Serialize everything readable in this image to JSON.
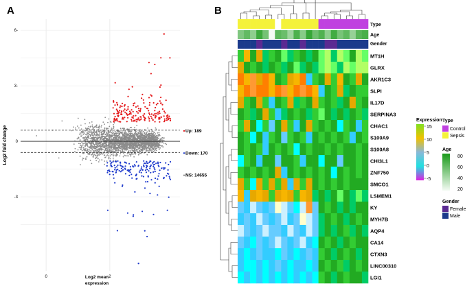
{
  "panel_a": {
    "label": "A",
    "chart_data": {
      "type": "scatter",
      "title": "",
      "xlabel": "Log2 mean expression",
      "ylabel": "Log2 fold change",
      "xlim": [
        -0.8,
        4.2
      ],
      "ylim": [
        -7.0,
        6.6
      ],
      "x_ticks": [
        0,
        2
      ],
      "y_ticks": [
        6,
        3,
        0,
        -3
      ],
      "x_tick_labels": [
        "0",
        "2"
      ],
      "y_tick_labels": [
        "6-",
        "3-",
        "0",
        "-3"
      ],
      "reference_lines": [
        0.6,
        -0.6
      ],
      "zero_line": 0,
      "series": [
        {
          "name": "Up",
          "color": "#e41a1c",
          "count": 189
        },
        {
          "name": "Down",
          "color": "#1f3bcc",
          "count": 170
        },
        {
          "name": "NS",
          "color": "#8c8c8c",
          "count": 14655
        }
      ],
      "legend": [
        "Up: 189",
        "Down: 170",
        "NS: 14655"
      ],
      "legend_position": "right"
    }
  },
  "panel_b": {
    "label": "B",
    "chart_data": {
      "type": "heatmap",
      "genes": [
        "MT1H",
        "GLRX",
        "AKR1C3",
        "SLPI",
        "IL17D",
        "SERPINA3",
        "CHAC1",
        "S100A9",
        "S100A8",
        "CHI3L1",
        "ZNF750",
        "SMCO1",
        "LSMEM1",
        "KY",
        "MYH7B",
        "AQP4",
        "CA14",
        "CTXN3",
        "LINC00310",
        "LGI1"
      ],
      "n_samples": 21,
      "annotation_rows": [
        "Type",
        "Age",
        "Gender"
      ],
      "type_values": [
        "Sepsis",
        "Sepsis",
        "Sepsis",
        "Sepsis",
        "Sepsis",
        "Sepsis",
        "Sepsis",
        "Sepsis",
        "Sepsis",
        "Sepsis",
        "Sepsis",
        "Sepsis",
        "Sepsis",
        "Control",
        "Control",
        "Control",
        "Control",
        "Control",
        "Control",
        "Control",
        "Control"
      ],
      "age_values": [
        52,
        60,
        48,
        70,
        55,
        20,
        62,
        58,
        44,
        66,
        50,
        72,
        57,
        65,
        48,
        69,
        54,
        61,
        46,
        63,
        67
      ],
      "gender_values": [
        "Male",
        "Male",
        "Male",
        "Female",
        "Male",
        "Male",
        "Male",
        "Female",
        "Male",
        "Male",
        "Female",
        "Male",
        "Male",
        "Male",
        "Female",
        "Female",
        "Male",
        "Male",
        "Male",
        "Male",
        "Male"
      ],
      "expression": [
        [
          11,
          9,
          12,
          10,
          13,
          11,
          12,
          14,
          13,
          11,
          12,
          13,
          12,
          14,
          15,
          13,
          15,
          14,
          12,
          15,
          14
        ],
        [
          10,
          12,
          11,
          12,
          13,
          12,
          11,
          13,
          12,
          14,
          13,
          12,
          13,
          14,
          15,
          14,
          13,
          15,
          14,
          15,
          15
        ],
        [
          8,
          9,
          7,
          10,
          8,
          9,
          12,
          11,
          10,
          9,
          8,
          3,
          11,
          12,
          10,
          11,
          9,
          12,
          11,
          10,
          12
        ],
        [
          9,
          8,
          7,
          8,
          8,
          9,
          8,
          7,
          9,
          8,
          7,
          8,
          9,
          3,
          12,
          11,
          10,
          13,
          12,
          11,
          11
        ],
        [
          10,
          11,
          12,
          10,
          11,
          3,
          12,
          11,
          10,
          13,
          11,
          12,
          10,
          11,
          12,
          11,
          13,
          12,
          10,
          11,
          12
        ],
        [
          12,
          11,
          13,
          12,
          10,
          11,
          3,
          13,
          12,
          11,
          12,
          13,
          11,
          14,
          12,
          13,
          12,
          13,
          12,
          11,
          13
        ],
        [
          11,
          10,
          12,
          2,
          11,
          4,
          12,
          10,
          11,
          3,
          12,
          10,
          11,
          12,
          11,
          12,
          2,
          11,
          12,
          3,
          11
        ],
        [
          12,
          11,
          2,
          12,
          3,
          11,
          12,
          4,
          11,
          12,
          11,
          3,
          12,
          11,
          12,
          11,
          12,
          11,
          3,
          12,
          11
        ],
        [
          12,
          11,
          12,
          11,
          3,
          12,
          11,
          12,
          11,
          2,
          12,
          11,
          12,
          12,
          11,
          12,
          11,
          12,
          12,
          11,
          12
        ],
        [
          2,
          11,
          12,
          3,
          12,
          12,
          4,
          12,
          12,
          11,
          3,
          12,
          12,
          2,
          12,
          12,
          4,
          12,
          12,
          11,
          12
        ],
        [
          11,
          12,
          11,
          12,
          11,
          12,
          10,
          3,
          12,
          11,
          12,
          11,
          12,
          11,
          12,
          2,
          12,
          11,
          12,
          11,
          12
        ],
        [
          10,
          11,
          2,
          10,
          11,
          10,
          11,
          10,
          3,
          10,
          11,
          10,
          12,
          11,
          12,
          11,
          12,
          11,
          12,
          12,
          12
        ],
        [
          9,
          3,
          10,
          9,
          10,
          11,
          10,
          9,
          10,
          11,
          9,
          10,
          13,
          12,
          13,
          12,
          14,
          12,
          13,
          14,
          13
        ],
        [
          4,
          3,
          5,
          4,
          3,
          4,
          6,
          5,
          4,
          2,
          5,
          7,
          4,
          12,
          11,
          12,
          13,
          12,
          13,
          12,
          12
        ],
        [
          3,
          4,
          3,
          5,
          4,
          3,
          4,
          5,
          3,
          4,
          6,
          5,
          4,
          13,
          12,
          11,
          12,
          13,
          12,
          11,
          12
        ],
        [
          5,
          4,
          3,
          4,
          5,
          4,
          4,
          3,
          5,
          4,
          3,
          5,
          4,
          13,
          12,
          13,
          12,
          11,
          13,
          12,
          13
        ],
        [
          4,
          3,
          2,
          4,
          3,
          4,
          5,
          4,
          3,
          4,
          5,
          3,
          2,
          12,
          11,
          12,
          13,
          12,
          11,
          12,
          12
        ],
        [
          3,
          2,
          3,
          4,
          3,
          3,
          2,
          4,
          3,
          2,
          3,
          4,
          3,
          11,
          12,
          13,
          12,
          11,
          12,
          13,
          12
        ],
        [
          3,
          2,
          2,
          3,
          2,
          3,
          4,
          3,
          2,
          3,
          3,
          2,
          3,
          12,
          11,
          12,
          11,
          13,
          12,
          11,
          12
        ],
        [
          2,
          3,
          2,
          3,
          2,
          3,
          2,
          3,
          2,
          3,
          2,
          3,
          2,
          11,
          12,
          13,
          12,
          11,
          12,
          12,
          13
        ]
      ],
      "expression_legend": {
        "title": "Expression",
        "ticks": [
          "15",
          "10",
          "5",
          "0",
          "-5"
        ]
      },
      "type_legend": {
        "title": "Type",
        "items": [
          {
            "label": "Control",
            "color": "#c040e0"
          },
          {
            "label": "Sepsis",
            "color": "#f4f23a"
          }
        ]
      },
      "age_legend": {
        "title": "Age",
        "ticks": [
          "80",
          "60",
          "40",
          "20"
        ]
      },
      "gender_legend": {
        "title": "Gender",
        "items": [
          {
            "label": "Female",
            "color": "#5b2a92"
          },
          {
            "label": "Male",
            "color": "#1b3a8c"
          }
        ]
      }
    }
  }
}
